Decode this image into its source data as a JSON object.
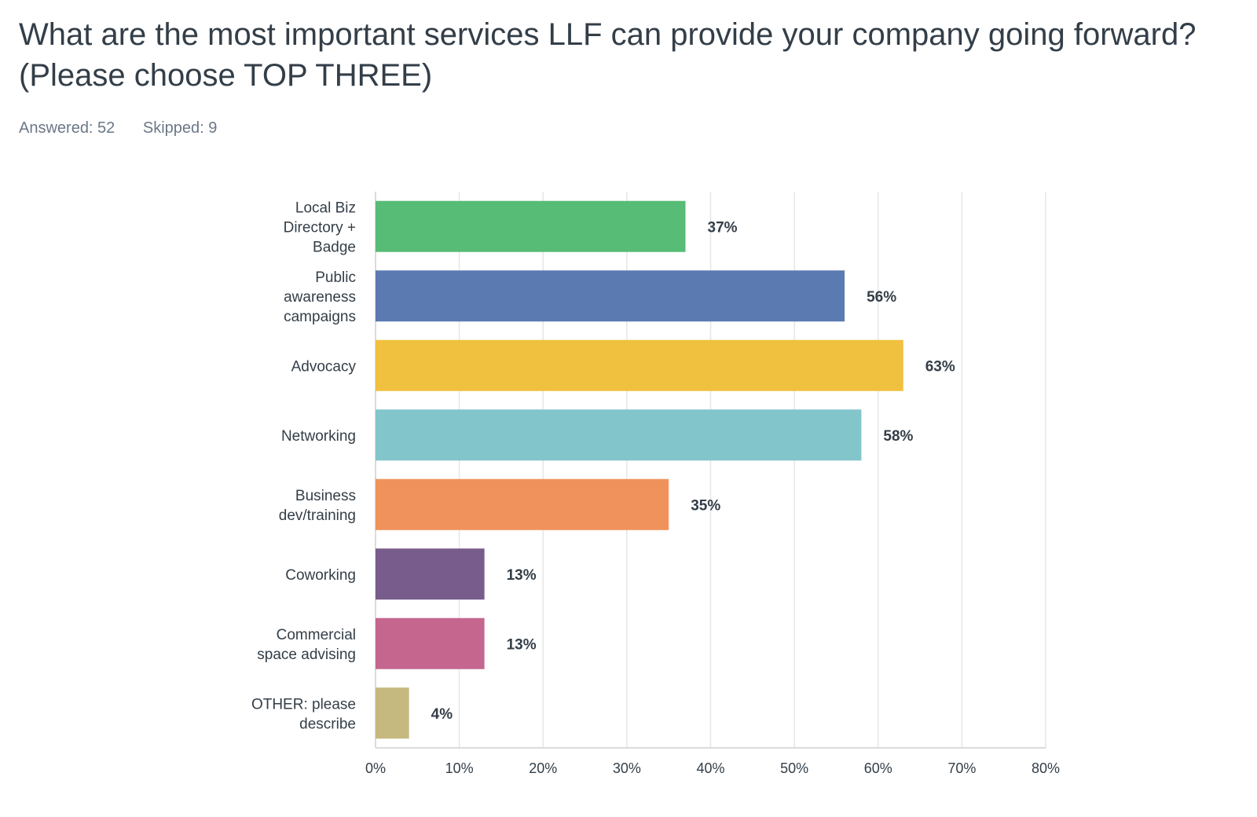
{
  "header": {
    "title": "What are the most important services LLF can provide your company going forward? (Please choose TOP THREE)",
    "answered": "Answered: 52",
    "skipped": "Skipped: 9"
  },
  "chart_data": {
    "type": "bar",
    "orientation": "horizontal",
    "categories": [
      [
        "Local Biz",
        "Directory +",
        "Badge"
      ],
      [
        "Public",
        "awareness",
        "campaigns"
      ],
      [
        "Advocacy"
      ],
      [
        "Networking"
      ],
      [
        "Business",
        "dev/training"
      ],
      [
        "Coworking"
      ],
      [
        "Commercial",
        "space advising"
      ],
      [
        "OTHER: please",
        "describe"
      ]
    ],
    "values": [
      37,
      56,
      63,
      58,
      35,
      13,
      13,
      4
    ],
    "value_labels": [
      "37%",
      "56%",
      "63%",
      "58%",
      "35%",
      "13%",
      "13%",
      "4%"
    ],
    "colors": [
      "#57bc75",
      "#5a7ab1",
      "#f0c03f",
      "#82c6cc",
      "#f0925b",
      "#785c8c",
      "#c5668f",
      "#c5b97f"
    ],
    "xlim": [
      0,
      80
    ],
    "ticks": [
      "0%",
      "10%",
      "20%",
      "30%",
      "40%",
      "50%",
      "60%",
      "70%",
      "80%"
    ],
    "grid": true
  }
}
